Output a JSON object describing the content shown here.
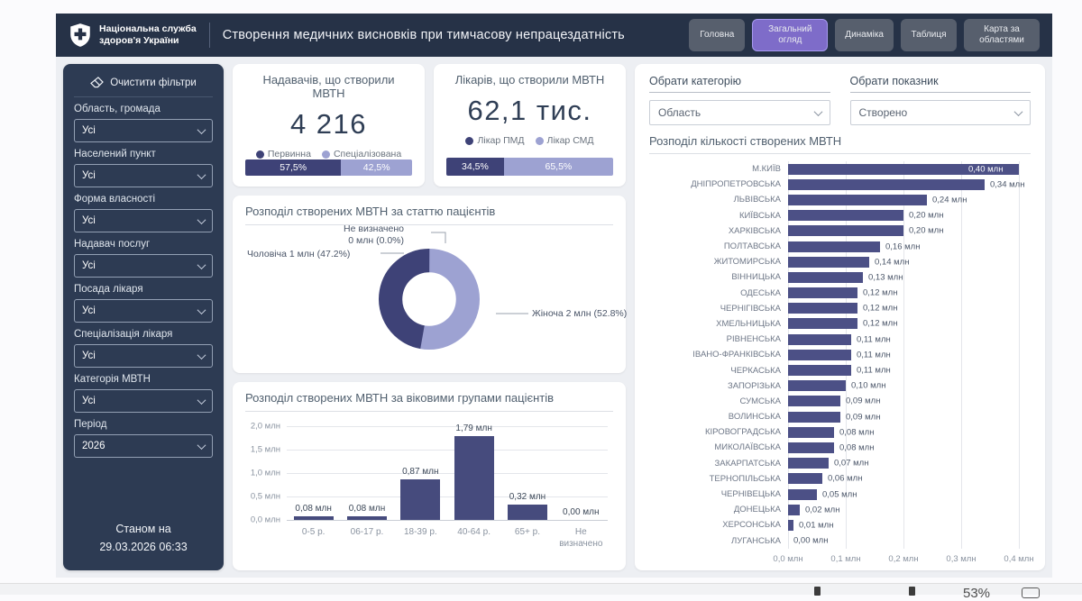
{
  "header": {
    "org_name_line1": "Національна служба",
    "org_name_line2": "здоров'я України",
    "title": "Створення медичних висновків при тимчасову непрацездатність",
    "nav": [
      {
        "label": "Головна",
        "active": false
      },
      {
        "label": "Загальний огляд",
        "active": true
      },
      {
        "label": "Динаміка",
        "active": false
      },
      {
        "label": "Таблиця",
        "active": false
      },
      {
        "label": "Карта за областями",
        "active": false
      }
    ]
  },
  "sidebar": {
    "clear_filters_label": "Очистити фільтри",
    "filters": [
      {
        "label": "Область, громада",
        "value": "Усі"
      },
      {
        "label": "Населений пункт",
        "value": "Усі"
      },
      {
        "label": "Форма власності",
        "value": "Усі"
      },
      {
        "label": "Надавач послуг",
        "value": "Усі"
      },
      {
        "label": "Посада лікаря",
        "value": "Усі"
      },
      {
        "label": "Спеціалізація лікаря",
        "value": "Усі"
      },
      {
        "label": "Категорія МВТН",
        "value": "Усі"
      },
      {
        "label": "Період",
        "value": "2026"
      }
    ],
    "as_of_label": "Станом на",
    "as_of_value": "29.03.2026 06:33"
  },
  "selectors": {
    "category_label": "Обрати категорію",
    "category_value": "Область",
    "metric_label": "Обрати показник",
    "metric_value": "Створено"
  },
  "colors": {
    "accent": "#7e6cc9",
    "dark_series": "#3e4277",
    "light_series": "#9da2d2",
    "bar": "#4c5086",
    "header_bg": "#263247",
    "sidebar_bg": "#2d3b53"
  },
  "chart_data": [
    {
      "id": "providers_kpi",
      "type": "bar",
      "subtype": "stacked-100",
      "title": "Надавачів, що створили МВТН",
      "total": "4 216",
      "series": [
        {
          "name": "Первинна",
          "pct": 57.5,
          "label": "57,5%",
          "color": "#3e4277"
        },
        {
          "name": "Спеціалізована",
          "pct": 42.5,
          "label": "42,5%",
          "color": "#9da2d2"
        }
      ]
    },
    {
      "id": "doctors_kpi",
      "type": "bar",
      "subtype": "stacked-100",
      "title": "Лікарів, що створили МВТН",
      "total": "62,1 тис.",
      "series": [
        {
          "name": "Лікар ПМД",
          "pct": 34.5,
          "label": "34,5%",
          "color": "#3e4277"
        },
        {
          "name": "Лікар СМД",
          "pct": 65.5,
          "label": "65,5%",
          "color": "#9da2d2"
        }
      ]
    },
    {
      "id": "gender_donut",
      "type": "pie",
      "title": "Розподіл створених МВТН за статтю пацієнтів",
      "slices": [
        {
          "name": "Жіноча",
          "pct": 52.8,
          "amount": "2 млн",
          "callout": "Жіноча 2 млн (52.8%)",
          "color": "#9da2d2"
        },
        {
          "name": "Чоловіча",
          "pct": 47.2,
          "amount": "1 млн",
          "callout": "Чоловіча 1 млн (47.2%)",
          "color": "#3e4277"
        },
        {
          "name": "Не визначено",
          "pct": 0.0,
          "amount": "0 млн",
          "callout_line1": "Не визначено",
          "callout_line2": "0 млн (0.0%)",
          "color": "#c9cce6"
        }
      ]
    },
    {
      "id": "age_groups",
      "type": "bar",
      "title": "Розподіл створених МВТН за віковими групами пацієнтів",
      "categories": [
        "0-5 р.",
        "06-17 р.",
        "18-39 р.",
        "40-64 р.",
        "65+ р.",
        "Не визначено"
      ],
      "values": [
        0.08,
        0.08,
        0.87,
        1.79,
        0.32,
        0.0
      ],
      "value_labels": [
        "0,08 млн",
        "0,08 млн",
        "0,87 млн",
        "1,79 млн",
        "0,32 млн",
        "0,00 млн"
      ],
      "y_ticks": [
        "2,0 млн",
        "1,5 млн",
        "1,0 млн",
        "0,5 млн",
        "0,0 млн"
      ],
      "ylim": [
        0,
        2.0
      ]
    },
    {
      "id": "regions",
      "type": "bar",
      "subtype": "horizontal",
      "title": "Розподіл кількості створених МВТН",
      "categories": [
        "М.КИЇВ",
        "ДНІПРОПЕТРОВСЬКА",
        "ЛЬВІВСЬКА",
        "КИЇВСЬКА",
        "ХАРКІВСЬКА",
        "ПОЛТАВСЬКА",
        "ЖИТОМИРСЬКА",
        "ВІННИЦЬКА",
        "ОДЕСЬКА",
        "ЧЕРНІГІВСЬКА",
        "ХМЕЛЬНИЦЬКА",
        "РІВНЕНСЬКА",
        "ІВАНО-ФРАНКІВСЬКА",
        "ЧЕРКАСЬКА",
        "ЗАПОРІЗЬКА",
        "СУМСЬКА",
        "ВОЛИНСЬКА",
        "КІРОВОГРАДСЬКА",
        "МИКОЛАЇВСЬКА",
        "ЗАКАРПАТСЬКА",
        "ТЕРНОПІЛЬСЬКА",
        "ЧЕРНІВЕЦЬКА",
        "ДОНЕЦЬКА",
        "ХЕРСОНСЬКА",
        "ЛУГАНСЬКА"
      ],
      "values": [
        0.4,
        0.34,
        0.24,
        0.2,
        0.2,
        0.16,
        0.14,
        0.13,
        0.12,
        0.12,
        0.12,
        0.11,
        0.11,
        0.11,
        0.1,
        0.09,
        0.09,
        0.08,
        0.08,
        0.07,
        0.06,
        0.05,
        0.02,
        0.01,
        0.0
      ],
      "value_labels": [
        "0,40 млн",
        "0,34 млн",
        "0,24 млн",
        "0,20 млн",
        "0,20 млн",
        "0,16 млн",
        "0,14 млн",
        "0,13 млн",
        "0,12 млн",
        "0,12 млн",
        "0,12 млн",
        "0,11 млн",
        "0,11 млн",
        "0,11 млн",
        "0,10 млн",
        "0,09 млн",
        "0,09 млн",
        "0,08 млн",
        "0,08 млн",
        "0,07 млн",
        "0,06 млн",
        "0,05 млн",
        "0,02 млн",
        "0,01 млн",
        "0,00 млн"
      ],
      "x_ticks": [
        "0,0 млн",
        "0,1 млн",
        "0,2 млн",
        "0,3 млн",
        "0,4 млн"
      ],
      "xlim": [
        0,
        0.43
      ]
    }
  ],
  "browser_bar": {
    "zoom": "53%"
  }
}
